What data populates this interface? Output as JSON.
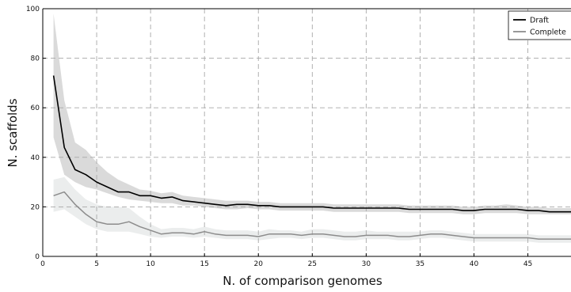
{
  "chart_data": {
    "type": "line",
    "title": "",
    "xlabel": "N. of comparison genomes",
    "ylabel": "N. scaffolds",
    "xlim": [
      0,
      49
    ],
    "ylim": [
      0,
      100
    ],
    "xticks": [
      0,
      5,
      10,
      15,
      20,
      25,
      30,
      35,
      40,
      45
    ],
    "yticks": [
      0,
      20,
      40,
      60,
      80,
      100
    ],
    "grid": true,
    "grid_style": "dashed",
    "legend_position": "top-right",
    "x": [
      1,
      2,
      3,
      4,
      5,
      6,
      7,
      8,
      9,
      10,
      11,
      12,
      13,
      14,
      15,
      16,
      17,
      18,
      19,
      20,
      21,
      22,
      23,
      24,
      25,
      26,
      27,
      28,
      29,
      30,
      31,
      32,
      33,
      34,
      35,
      36,
      37,
      38,
      39,
      40,
      41,
      42,
      43,
      44,
      45,
      46,
      47,
      48,
      49
    ],
    "series": [
      {
        "name": "Draft",
        "color": "#000000",
        "band_color": "#d4d4d4",
        "values": [
          73,
          44,
          35,
          33,
          30,
          28,
          26,
          26,
          24.5,
          24.5,
          23.5,
          24,
          22.5,
          22,
          21.5,
          21,
          20.5,
          21,
          21,
          20.5,
          20.5,
          20,
          20,
          20,
          20,
          20,
          19.5,
          19.5,
          19.5,
          19.5,
          19.5,
          19.5,
          19.5,
          19,
          19,
          19,
          19,
          19,
          18.5,
          18.5,
          19,
          19,
          19,
          19,
          18.5,
          18.5,
          18,
          18,
          18
        ],
        "lower": [
          48,
          33,
          30,
          28,
          27,
          25.5,
          24,
          23,
          22.5,
          22,
          21.5,
          21.5,
          20.5,
          20.5,
          20,
          19.5,
          19,
          19,
          19.5,
          19,
          19,
          18.5,
          18.5,
          18.5,
          18.5,
          18.5,
          18,
          18,
          18,
          18,
          18,
          18,
          18,
          17.5,
          17.5,
          17.5,
          17.5,
          17.5,
          17,
          17,
          17.5,
          17.5,
          17.5,
          17.5,
          17,
          17,
          17,
          17,
          17
        ],
        "upper": [
          98,
          63,
          46,
          43,
          38,
          34,
          31,
          29,
          27,
          26.5,
          25.5,
          26,
          24.5,
          24,
          23.5,
          23,
          22.5,
          22.5,
          22.5,
          22,
          22,
          21.5,
          21.5,
          21.5,
          21.5,
          21.5,
          21,
          21,
          21,
          21,
          21,
          21,
          21,
          20.5,
          20.5,
          20.5,
          20.5,
          20.5,
          20,
          20,
          20.5,
          20.5,
          21,
          20.5,
          20,
          20,
          19.5,
          19.5,
          19.5
        ]
      },
      {
        "name": "Complete",
        "color": "#8c8c8c",
        "band_color": "#e9ebeb",
        "values": [
          24.5,
          26,
          21,
          17,
          14,
          13,
          13,
          14,
          12,
          10.5,
          9,
          9.5,
          9.5,
          9,
          10,
          9,
          8.5,
          8.5,
          8.5,
          8,
          9,
          9,
          9,
          8.5,
          9,
          9,
          8.5,
          8,
          8,
          8.5,
          8.5,
          8.5,
          8,
          8,
          8.5,
          9,
          9,
          8.5,
          8,
          7.5,
          7.5,
          7.5,
          7.5,
          7.5,
          7.5,
          7,
          7,
          7,
          7
        ],
        "lower": [
          18,
          19,
          16,
          13,
          11,
          10,
          10,
          10,
          9,
          8,
          7.5,
          8,
          8,
          7.5,
          8,
          7.5,
          7,
          7,
          7,
          6.5,
          7,
          7.5,
          7.5,
          7,
          7.5,
          7.5,
          7,
          6.5,
          6.5,
          7,
          7,
          7,
          6.5,
          6.5,
          7,
          7.5,
          7.5,
          7,
          6.5,
          6,
          6,
          6,
          6,
          6,
          6,
          5.5,
          5.5,
          5.5,
          5.5
        ],
        "upper": [
          31,
          32,
          27,
          23,
          21,
          20,
          20,
          19.5,
          16,
          13,
          11,
          11.5,
          11.5,
          11,
          12,
          11,
          10.5,
          10.5,
          10.5,
          10,
          11,
          10.5,
          10.5,
          10,
          11,
          11,
          10.5,
          10,
          10,
          10.5,
          10,
          10,
          10,
          10,
          10,
          10.5,
          10.5,
          10,
          9.5,
          9,
          9,
          9,
          9,
          9,
          9,
          8.5,
          8.5,
          8.5,
          8.5
        ]
      }
    ]
  }
}
